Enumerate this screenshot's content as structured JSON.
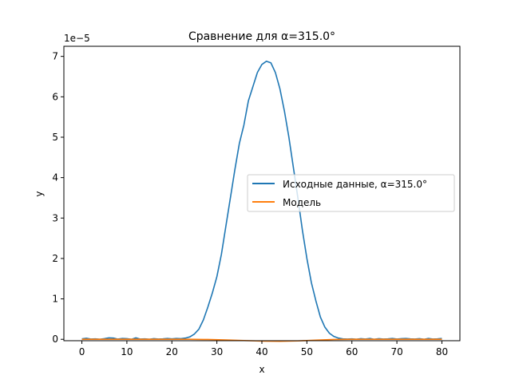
{
  "chart_data": {
    "type": "line",
    "title": "Сравнение для α=315.0°",
    "xlabel": "x",
    "ylabel": "y",
    "offset_label": "1e−5",
    "xlim": [
      -4,
      84
    ],
    "ylim": [
      -3.5e-07,
      7.25e-05
    ],
    "xticks": [
      0,
      10,
      20,
      30,
      40,
      50,
      60,
      70,
      80
    ],
    "xtick_labels": [
      "0",
      "10",
      "20",
      "30",
      "40",
      "50",
      "60",
      "70",
      "80"
    ],
    "yticks": [
      0,
      1e-05,
      2e-05,
      3e-05,
      4e-05,
      5e-05,
      6e-05,
      7e-05
    ],
    "ytick_labels": [
      "0",
      "1",
      "2",
      "3",
      "4",
      "5",
      "6",
      "7"
    ],
    "grid": false,
    "legend_position": "center right",
    "series": [
      {
        "name": "Исходные данные, α=315.0°",
        "color": "#1f77b4",
        "x": [
          0,
          1,
          2,
          3,
          4,
          5,
          6,
          7,
          8,
          9,
          10,
          11,
          12,
          13,
          14,
          15,
          16,
          17,
          18,
          19,
          20,
          21,
          22,
          23,
          24,
          25,
          26,
          27,
          28,
          29,
          30,
          31,
          32,
          33,
          34,
          35,
          36,
          37,
          38,
          39,
          40,
          41,
          42,
          43,
          44,
          45,
          46,
          47,
          48,
          49,
          50,
          51,
          52,
          53,
          54,
          55,
          56,
          57,
          58,
          59,
          60,
          61,
          62,
          63,
          64,
          65,
          66,
          67,
          68,
          69,
          70,
          71,
          72,
          73,
          74,
          75,
          76,
          77,
          78,
          79,
          80
        ],
        "y": [
          1e-07,
          2.5e-07,
          5e-08,
          1e-07,
          0.0,
          1.5e-07,
          3.5e-07,
          3e-07,
          5e-08,
          2e-07,
          1.5e-07,
          0.0,
          3.5e-07,
          5e-08,
          1e-07,
          0.0,
          1.5e-07,
          5e-08,
          1e-07,
          2e-07,
          1e-07,
          2e-07,
          1.5e-07,
          3e-07,
          6e-07,
          1.3e-06,
          2.5e-06,
          4.8e-06,
          8e-06,
          1.15e-05,
          1.55e-05,
          2.1e-05,
          2.8e-05,
          3.5e-05,
          4.2e-05,
          4.85e-05,
          5.3e-05,
          5.9e-05,
          6.25e-05,
          6.6e-05,
          6.8e-05,
          6.88e-05,
          6.84e-05,
          6.6e-05,
          6.2e-05,
          5.65e-05,
          5e-05,
          4.25e-05,
          3.5e-05,
          2.7e-05,
          2e-05,
          1.4e-05,
          9.5e-06,
          5.5e-06,
          3e-06,
          1.5e-06,
          7e-07,
          3e-07,
          1e-07,
          5e-08,
          1e-07,
          0.0,
          1.5e-07,
          5e-08,
          2e-07,
          0.0,
          1.5e-07,
          5e-08,
          1e-07,
          2e-07,
          5e-08,
          1.5e-07,
          2e-07,
          1e-07,
          5e-08,
          1.5e-07,
          0.0,
          2e-07,
          5e-08,
          1e-07,
          2e-07
        ]
      },
      {
        "name": "Модель",
        "color": "#ff7f0e",
        "x": [
          0,
          4,
          8,
          12,
          16,
          20,
          24,
          28,
          32,
          36,
          40,
          44,
          48,
          52,
          56,
          60,
          64,
          68,
          72,
          76,
          80
        ],
        "y": [
          0.0,
          0.0,
          0.0,
          0.0,
          0.0,
          0.0,
          0.0,
          -5e-08,
          -1.5e-07,
          -3e-07,
          -4.5e-07,
          -5e-07,
          -4e-07,
          -2e-07,
          -5e-08,
          0.0,
          0.0,
          0.0,
          0.0,
          0.0,
          0.0
        ]
      }
    ]
  }
}
